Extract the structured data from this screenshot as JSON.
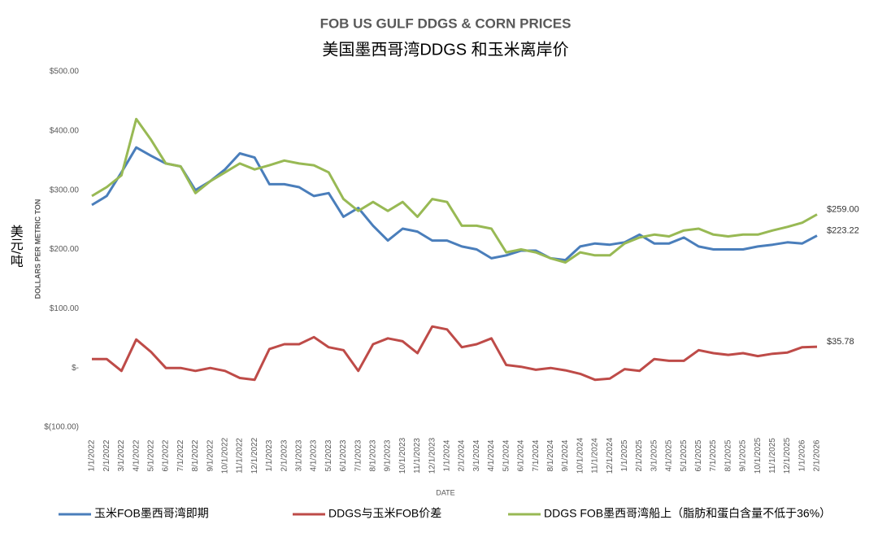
{
  "chart_data": {
    "type": "line",
    "title": "FOB US GULF DDGS & CORN PRICES",
    "subtitle": "美国墨西哥湾DDGS 和玉米离岸价",
    "y_label": "DOLLARS PER METRIC TON",
    "y_label_cn": "美元/吨",
    "x_label": "DATE",
    "categories": [
      "1/1/2022",
      "2/1/2022",
      "3/1/2022",
      "4/1/2022",
      "5/1/2022",
      "6/1/2022",
      "7/1/2022",
      "8/1/2022",
      "9/1/2022",
      "10/1/2022",
      "11/1/2022",
      "12/1/2022",
      "1/1/2023",
      "2/1/2023",
      "3/1/2023",
      "4/1/2023",
      "5/1/2023",
      "6/1/2023",
      "7/1/2023",
      "8/1/2023",
      "9/1/2023",
      "10/1/2023",
      "11/1/2023",
      "12/1/2023",
      "1/1/2024",
      "2/1/2024",
      "3/1/2024",
      "4/1/2024",
      "5/1/2024",
      "6/1/2024",
      "7/1/2024",
      "8/1/2024",
      "9/1/2024",
      "10/1/2024",
      "11/1/2024",
      "12/1/2024",
      "1/1/2025",
      "2/1/2025",
      "3/1/2025",
      "4/1/2025",
      "5/1/2025",
      "6/1/2025",
      "7/1/2025",
      "8/1/2025",
      "9/1/2025",
      "10/1/2025",
      "11/1/2025",
      "12/1/2025",
      "1/1/2026",
      "2/1/2026"
    ],
    "series": [
      {
        "name": "玉米FOB墨西哥湾即期",
        "color": "#4a7ebb",
        "values": [
          275,
          290,
          330,
          372,
          358,
          345,
          340,
          300,
          315,
          335,
          362,
          355,
          310,
          310,
          305,
          290,
          295,
          255,
          270,
          240,
          215,
          235,
          230,
          215,
          215,
          205,
          200,
          185,
          190,
          198,
          198,
          185,
          182,
          205,
          210,
          208,
          212,
          225,
          210,
          210,
          220,
          205,
          200,
          200,
          200,
          205,
          208,
          212,
          210,
          223.22
        ],
        "value_labels": [
          null,
          null,
          null,
          null,
          null,
          null,
          null,
          null,
          null,
          null,
          null,
          null,
          null,
          null,
          null,
          null,
          null,
          null,
          null,
          null,
          null,
          null,
          null,
          null,
          null,
          null,
          null,
          null,
          null,
          null,
          null,
          null,
          null,
          null,
          null,
          null,
          null,
          null,
          null,
          null,
          null,
          null,
          null,
          null,
          null,
          null,
          null,
          null,
          null,
          "$223.22"
        ]
      },
      {
        "name": "DDGS与玉米FOB价差",
        "color": "#be4b48",
        "values": [
          15,
          15,
          -5,
          48,
          27,
          0,
          0,
          -5,
          0,
          -5,
          -17,
          -20,
          32,
          40,
          40,
          52,
          35,
          30,
          -5,
          40,
          50,
          45,
          25,
          70,
          65,
          35,
          40,
          50,
          5,
          2,
          -3,
          0,
          -4,
          -10,
          -20,
          -18,
          -2,
          -5,
          15,
          12,
          12,
          30,
          25,
          22,
          25,
          20,
          24,
          26,
          35,
          35.78
        ],
        "value_labels": [
          null,
          null,
          null,
          null,
          null,
          null,
          null,
          null,
          null,
          null,
          null,
          null,
          null,
          null,
          null,
          null,
          null,
          null,
          null,
          null,
          null,
          null,
          null,
          null,
          null,
          null,
          null,
          null,
          null,
          null,
          null,
          null,
          null,
          null,
          null,
          null,
          null,
          null,
          null,
          null,
          null,
          null,
          null,
          null,
          null,
          null,
          null,
          null,
          null,
          "$35.78"
        ]
      },
      {
        "name": "DDGS FOB墨西哥湾船上（脂肪和蛋白含量不低于36%）",
        "color": "#98b954",
        "values": [
          290,
          305,
          325,
          420,
          385,
          345,
          340,
          295,
          315,
          330,
          345,
          335,
          342,
          350,
          345,
          342,
          330,
          285,
          265,
          280,
          265,
          280,
          255,
          285,
          280,
          240,
          240,
          235,
          195,
          200,
          195,
          185,
          178,
          195,
          190,
          190,
          210,
          220,
          225,
          222,
          232,
          235,
          225,
          222,
          225,
          225,
          232,
          238,
          245,
          259
        ],
        "value_labels": [
          null,
          null,
          null,
          null,
          null,
          null,
          null,
          null,
          null,
          null,
          null,
          null,
          null,
          null,
          null,
          null,
          null,
          null,
          null,
          null,
          null,
          null,
          null,
          null,
          null,
          null,
          null,
          null,
          null,
          null,
          null,
          null,
          null,
          null,
          null,
          null,
          null,
          null,
          null,
          null,
          null,
          null,
          null,
          null,
          null,
          null,
          null,
          null,
          null,
          "$259.00"
        ]
      }
    ],
    "ylim": [
      -100,
      500
    ],
    "yticks": [
      {
        "value": -100,
        "label": "$(100.00)"
      },
      {
        "value": 0,
        "label": "$-"
      },
      {
        "value": 100,
        "label": "$100.00"
      },
      {
        "value": 200,
        "label": "$200.00"
      },
      {
        "value": 300,
        "label": "$300.00"
      },
      {
        "value": 400,
        "label": "$400.00"
      },
      {
        "value": 500,
        "label": "$500.00"
      }
    ],
    "grid": false,
    "legend": "bottom"
  }
}
